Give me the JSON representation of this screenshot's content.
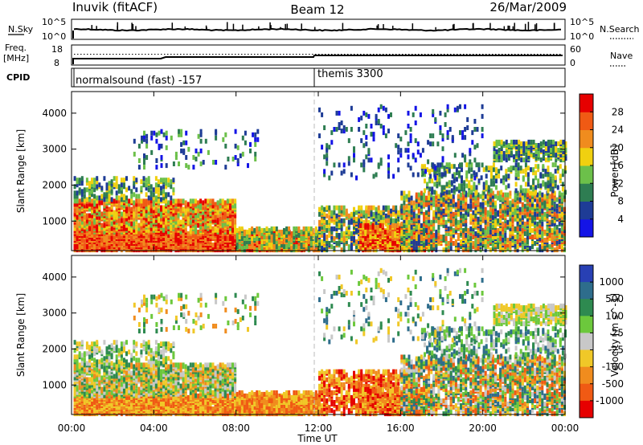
{
  "header": {
    "station": "Inuvik (fitACF)",
    "beam": "Beam 12",
    "date": "26/Mar/2009"
  },
  "noise_panel": {
    "left_label": "N.Sky",
    "left_ticks": [
      "10^5",
      "10^0"
    ],
    "right_label": "N.Search",
    "right_ticks": [
      "10^5",
      "10^0"
    ]
  },
  "freq_panel": {
    "left_label_1": "Freq.",
    "left_label_2": "[MHz]",
    "left_ticks": [
      "18",
      "8"
    ],
    "right_label": "Nave",
    "right_ticks": [
      "60",
      "0"
    ]
  },
  "cpid_panel": {
    "label": "CPID",
    "segments": [
      {
        "text": "normalsound (fast) -157",
        "start_hour": 0
      },
      {
        "text": "themis 3300",
        "start_hour": 12
      }
    ]
  },
  "x_axis": {
    "ticks": [
      "00:00",
      "04:00",
      "08:00",
      "12:00",
      "16:00",
      "20:00",
      "00:00"
    ],
    "label": "Time UT"
  },
  "chart_data": [
    {
      "type": "heatmap",
      "panel": "power",
      "ylabel": "Slant Range [km]",
      "yticks": [
        "1000",
        "2000",
        "3000",
        "4000"
      ],
      "ylim": [
        180,
        4600
      ],
      "xlim_hours": [
        0,
        24
      ],
      "colorbar_label": "Power [dB]",
      "colorbar_ticks": [
        "4",
        "8",
        "12",
        "16",
        "20",
        "24",
        "28"
      ],
      "colorbar_colors": [
        "#1414e6",
        "#1e3c96",
        "#2e7d52",
        "#6cc04a",
        "#f0d010",
        "#f08c1e",
        "#f05a14",
        "#e60000"
      ]
    },
    {
      "type": "heatmap",
      "panel": "velocity",
      "ylabel": "Slant Range [km]",
      "yticks": [
        "1000",
        "2000",
        "3000",
        "4000"
      ],
      "ylim": [
        180,
        4600
      ],
      "xlim_hours": [
        0,
        24
      ],
      "colorbar_label": "Velocity [m s^-1]",
      "colorbar_ticks": [
        "1000",
        "500",
        "100",
        "25",
        "-25",
        "-100",
        "-500",
        "-1000"
      ],
      "colorbar_colors": [
        "#2840b4",
        "#2e6d8c",
        "#2e8a50",
        "#6cc83c",
        "#c8c8c8",
        "#f0c828",
        "#f08c1e",
        "#f05a14",
        "#e60000"
      ]
    }
  ]
}
